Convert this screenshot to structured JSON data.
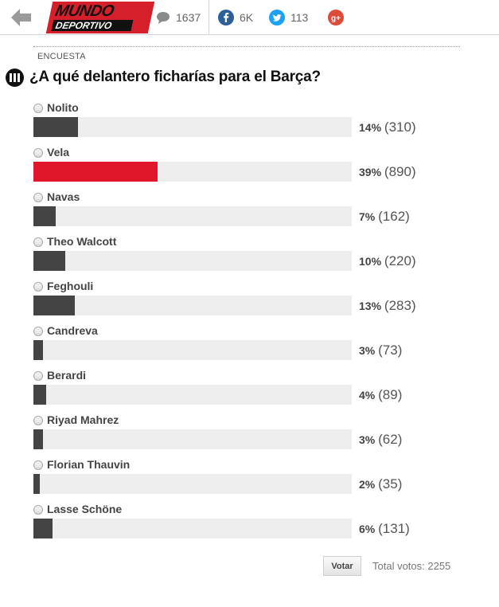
{
  "header": {
    "logo_line1": "MUNDO",
    "logo_line2": "DEPORTIVO",
    "comments_count": "1637",
    "facebook_count": "6K",
    "twitter_count": "113",
    "icons": [
      "back-arrow-icon",
      "comment-icon",
      "facebook-icon",
      "twitter-icon",
      "google-plus-icon"
    ],
    "colors": {
      "brand_red": "#d5202b",
      "facebook": "#2d5f9a",
      "twitter": "#1da1f2",
      "google_plus": "#dd4b39"
    }
  },
  "survey": {
    "kicker": "ENCUESTA",
    "title": "¿A qué delantero ficharías para el Barça?",
    "options": [
      {
        "label": "Nolito",
        "percent_text": "14%",
        "count_text": "(310)",
        "share": 0.14,
        "highlighted": false
      },
      {
        "label": "Vela",
        "percent_text": "39%",
        "count_text": "(890)",
        "share": 0.39,
        "highlighted": true
      },
      {
        "label": "Navas",
        "percent_text": "7%",
        "count_text": "(162)",
        "share": 0.07,
        "highlighted": false
      },
      {
        "label": "Theo Walcott",
        "percent_text": "10%",
        "count_text": "(220)",
        "share": 0.1,
        "highlighted": false
      },
      {
        "label": "Feghouli",
        "percent_text": "13%",
        "count_text": "(283)",
        "share": 0.13,
        "highlighted": false
      },
      {
        "label": "Candreva",
        "percent_text": "3%",
        "count_text": "(73)",
        "share": 0.03,
        "highlighted": false
      },
      {
        "label": "Berardi",
        "percent_text": "4%",
        "count_text": "(89)",
        "share": 0.04,
        "highlighted": false
      },
      {
        "label": "Riyad Mahrez",
        "percent_text": "3%",
        "count_text": "(62)",
        "share": 0.03,
        "highlighted": false
      },
      {
        "label": "Florian Thauvin",
        "percent_text": "2%",
        "count_text": "(35)",
        "share": 0.02,
        "highlighted": false
      },
      {
        "label": "Lasse Schöne",
        "percent_text": "6%",
        "count_text": "(131)",
        "share": 0.06,
        "highlighted": false
      }
    ],
    "vote_label": "Votar",
    "total_text": "Total votos: 2255",
    "colors": {
      "bar": "#444444",
      "bar_highlight": "#e0162b",
      "track": "#eeeeee"
    }
  }
}
